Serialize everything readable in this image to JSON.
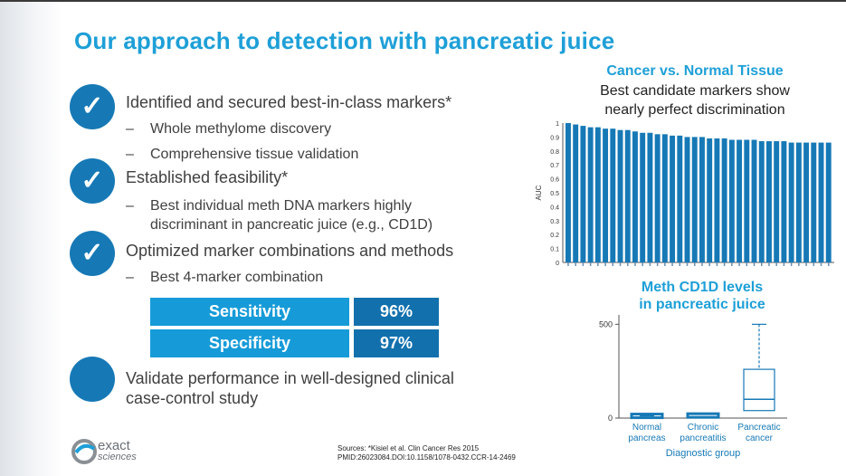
{
  "title": "Our approach to detection with pancreatic juice",
  "bullets": [
    {
      "check": "✓",
      "text": "Identified and secured best-in-class markers*",
      "subs": [
        "Whole methylome discovery",
        "Comprehensive tissue validation"
      ]
    },
    {
      "check": "✓",
      "text": "Established feasibility*",
      "subs": [
        "Best individual meth DNA markers highly",
        "discriminant in pancreatic juice (e.g., CD1D)"
      ]
    },
    {
      "check": "✓",
      "text": "Optimized marker combinations and methods",
      "subs": [
        "Best 4-marker combination"
      ]
    },
    {
      "check": "",
      "text_line1": "Validate performance in well-designed clinical",
      "text_line2": "case-control study"
    }
  ],
  "dash": "–",
  "performance_table": [
    {
      "label": "Sensitivity",
      "value": "96%"
    },
    {
      "label": "Specificity",
      "value": "97%"
    }
  ],
  "sources": {
    "line1": "Sources: *Kisiel et al. Clin Cancer Res 2015",
    "line2": "PMID:26023084.DOI:10.1158/1078-0432.CCR-14-2469"
  },
  "logo": {
    "line1": "exact",
    "line2": "sciences"
  },
  "colors": {
    "title": "#1e9fd7",
    "circle": "#1679b6",
    "bar": "#1679b6",
    "table_label": "#169bd8",
    "table_value": "#1270ad"
  },
  "chart_data": [
    {
      "type": "bar",
      "title": "Cancer vs. Normal Tissue",
      "subtitle_line1": "Best candidate markers show",
      "subtitle_line2": "nearly perfect discrimination",
      "ylabel": "AUC",
      "ylim": [
        0,
        1
      ],
      "yticks": [
        "0",
        "0.1",
        "0.2",
        "0.3",
        "0.4",
        "0.5",
        "0.6",
        "0.7",
        "0.8",
        "0.9",
        "1"
      ],
      "values": [
        1.0,
        0.99,
        0.98,
        0.97,
        0.97,
        0.96,
        0.96,
        0.95,
        0.95,
        0.94,
        0.93,
        0.93,
        0.92,
        0.92,
        0.91,
        0.91,
        0.9,
        0.9,
        0.9,
        0.89,
        0.89,
        0.89,
        0.88,
        0.88,
        0.88,
        0.88,
        0.87,
        0.87,
        0.87,
        0.87,
        0.86,
        0.86,
        0.86,
        0.86,
        0.86,
        0.86
      ]
    },
    {
      "type": "boxplot",
      "title_line1": "Meth CD1D levels",
      "title_line2": "in pancreatic juice",
      "xlabel": "Diagnostic group",
      "ylim": [
        0,
        550
      ],
      "yticks": [
        "0",
        "500"
      ],
      "groups": [
        {
          "line1": "Normal",
          "line2": "pancreas",
          "min": 0,
          "q1": 2,
          "median": 5,
          "q3": 10,
          "max": 12
        },
        {
          "line1": "Chronic",
          "line2": "pancreatitis",
          "min": 0,
          "q1": 4,
          "median": 10,
          "q3": 18,
          "max": 22
        },
        {
          "line1": "Pancreatic",
          "line2": "cancer",
          "min": 20,
          "q1": 40,
          "median": 100,
          "q3": 260,
          "max": 500
        }
      ]
    }
  ]
}
